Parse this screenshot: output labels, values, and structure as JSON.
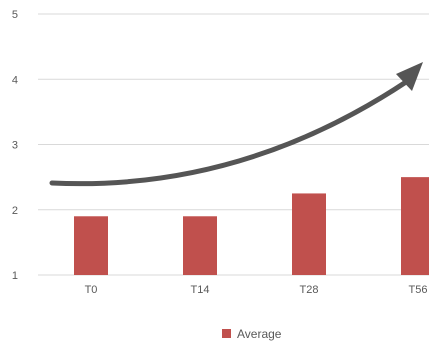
{
  "chart_data": {
    "type": "bar",
    "categories": [
      "T0",
      "T14",
      "T28",
      "T56"
    ],
    "series": [
      {
        "name": "Average",
        "values": [
          1.9,
          1.9,
          2.25,
          2.5
        ],
        "color": "#c0504d"
      }
    ],
    "ylim": [
      1,
      5
    ],
    "yticks": [
      "1",
      "2",
      "3",
      "4",
      "5"
    ],
    "grid": true,
    "legend": "bottom",
    "annotation": {
      "type": "trend-arrow",
      "color": "#555555"
    },
    "gridline_color": "#d9d9d9",
    "axis_line_color": "#d9d9d9"
  }
}
